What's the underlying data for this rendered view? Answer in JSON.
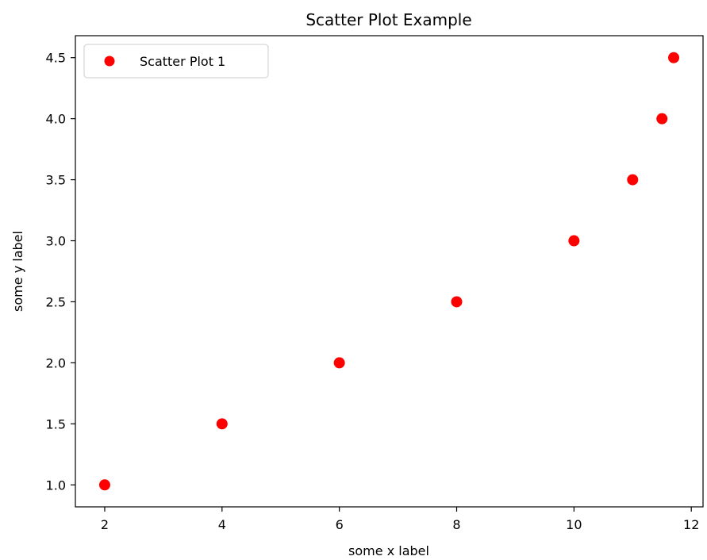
{
  "chart_data": {
    "type": "scatter",
    "title": "Scatter Plot Example",
    "xlabel": "some x label",
    "ylabel": "some y label",
    "xlim": [
      1.5,
      12.2
    ],
    "ylim": [
      0.82,
      4.68
    ],
    "xticks": [
      2,
      4,
      6,
      8,
      10,
      12
    ],
    "xtick_labels": [
      "2",
      "4",
      "6",
      "8",
      "10",
      "12"
    ],
    "yticks": [
      1.0,
      1.5,
      2.0,
      2.5,
      3.0,
      3.5,
      4.0,
      4.5
    ],
    "ytick_labels": [
      "1.0",
      "1.5",
      "2.0",
      "2.5",
      "3.0",
      "3.5",
      "4.0",
      "4.5"
    ],
    "grid": false,
    "legend_position": "top-left",
    "series": [
      {
        "name": "Scatter Plot 1",
        "color": "#ff0000",
        "x": [
          2,
          4,
          6,
          8,
          10,
          11,
          11.5,
          11.7
        ],
        "y": [
          1.0,
          1.5,
          2.0,
          2.5,
          3.0,
          3.5,
          4.0,
          4.5
        ]
      }
    ]
  }
}
